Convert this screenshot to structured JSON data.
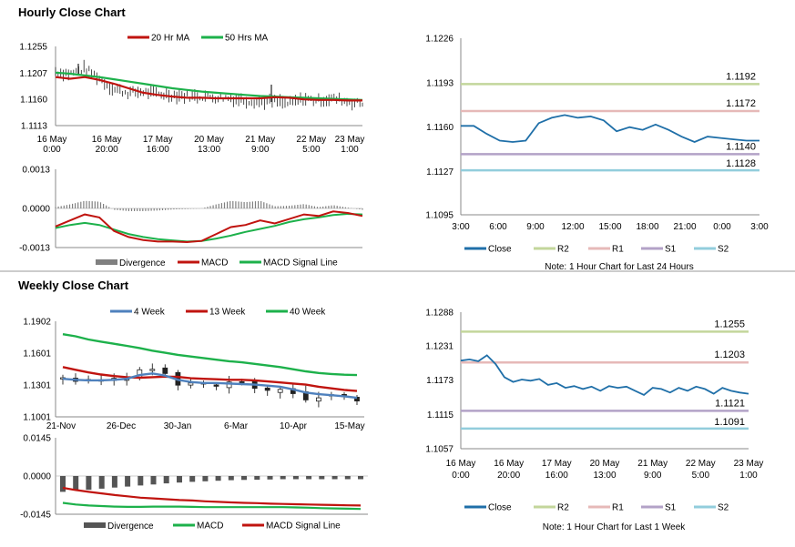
{
  "sections": {
    "hourly_title": "Hourly Close Chart",
    "weekly_title": "Weekly Close Chart"
  },
  "colors": {
    "ma_short": "#c0140f",
    "ma_long": "#1db14b",
    "week4": "#4f81bd",
    "divergence": "#808080",
    "close": "#1f6fa8",
    "r2": "#c3d69b",
    "r1": "#e6b9b8",
    "s1": "#b3a2c7",
    "s2": "#92cddc"
  },
  "chart_data": [
    {
      "id": "hourly_price",
      "type": "line",
      "legend": [
        "20 Hr MA",
        "50 Hrs MA"
      ],
      "yticks": [
        "1.1255",
        "1.1207",
        "1.1160",
        "1.1113"
      ],
      "ylim": [
        1.1113,
        1.1255
      ],
      "xticks": [
        [
          "16 May",
          "0:00"
        ],
        [
          "16 May",
          "20:00"
        ],
        [
          "17 May",
          "16:00"
        ],
        [
          "20 May",
          "13:00"
        ],
        [
          "21 May",
          "9:00"
        ],
        [
          "22 May",
          "5:00"
        ],
        [
          "23 May",
          "1:00"
        ]
      ],
      "n": 120,
      "series": [
        {
          "name": "20 Hr MA",
          "values": [
            1.12,
            1.1197,
            1.12,
            1.1195,
            1.1188,
            1.118,
            1.1172,
            1.1168,
            1.1165,
            1.1163,
            1.1163,
            1.1162,
            1.1162,
            1.1162,
            1.1162,
            1.1164,
            1.1163,
            1.116,
            1.1159,
            1.1159,
            1.1158,
            1.1158
          ]
        },
        {
          "name": "50 Hrs MA",
          "values": [
            1.1208,
            1.1206,
            1.1203,
            1.12,
            1.1196,
            1.1192,
            1.1188,
            1.1184,
            1.118,
            1.1177,
            1.1174,
            1.1172,
            1.117,
            1.1168,
            1.1166,
            1.1165,
            1.1164,
            1.1163,
            1.1162,
            1.1161,
            1.116,
            1.1159
          ]
        },
        {
          "name": "Close",
          "values": [
            1.121,
            1.1206,
            1.1215,
            1.1198,
            1.1178,
            1.1172,
            1.1174,
            1.117,
            1.1168,
            1.1166,
            1.1166,
            1.1164,
            1.1162,
            1.1159,
            1.1156,
            1.1157,
            1.1152,
            1.1161,
            1.1158,
            1.1162,
            1.1156,
            1.1152
          ]
        }
      ]
    },
    {
      "id": "hourly_macd",
      "type": "line",
      "legend": [
        "Divergence",
        "MACD",
        "MACD Signal Line"
      ],
      "yticks": [
        "0.0013",
        "0.0000",
        "-0.0013"
      ],
      "ylim": [
        -0.0013,
        0.0013
      ],
      "series": [
        {
          "name": "MACD",
          "values": [
            -0.0006,
            -0.0004,
            -0.0002,
            -0.0003,
            -0.00075,
            -0.00095,
            -0.00105,
            -0.0011,
            -0.0011,
            -0.00112,
            -0.00108,
            -0.00085,
            -0.00062,
            -0.00055,
            -0.0004,
            -0.0005,
            -0.00035,
            -0.0002,
            -0.00025,
            -0.0001,
            -0.00015,
            -0.00025
          ]
        },
        {
          "name": "MACD Signal Line",
          "values": [
            -0.00065,
            -0.00055,
            -0.00048,
            -0.00055,
            -0.0007,
            -0.00085,
            -0.00095,
            -0.00102,
            -0.00106,
            -0.0011,
            -0.00108,
            -0.001,
            -0.0009,
            -0.00078,
            -0.00068,
            -0.00058,
            -0.00045,
            -0.00036,
            -0.0003,
            -0.00022,
            -0.00018,
            -0.0002
          ]
        }
      ]
    },
    {
      "id": "hourly_close",
      "type": "line",
      "legend": [
        "Close",
        "R2",
        "R1",
        "S1",
        "S2"
      ],
      "note": "Note: 1 Hour Chart for Last 24 Hours",
      "yticks": [
        "1.1226",
        "1.1193",
        "1.1160",
        "1.1127",
        "1.1095"
      ],
      "ylim": [
        1.1095,
        1.1226
      ],
      "xticks": [
        "3:00",
        "6:00",
        "9:00",
        "12:00",
        "15:00",
        "18:00",
        "21:00",
        "0:00",
        "3:00"
      ],
      "levels": {
        "R2": "1.1192",
        "R1": "1.1172",
        "S1": "1.1140",
        "S2": "1.1128"
      },
      "level_values": {
        "R2": 1.1192,
        "R1": 1.1172,
        "S1": 1.114,
        "S2": 1.1128
      },
      "values": [
        1.1161,
        1.1161,
        1.1155,
        1.115,
        1.1149,
        1.115,
        1.1163,
        1.1167,
        1.1169,
        1.1167,
        1.1168,
        1.1165,
        1.1157,
        1.116,
        1.1158,
        1.1162,
        1.1158,
        1.1153,
        1.1149,
        1.1153,
        1.1152,
        1.1151,
        1.115,
        1.115
      ]
    },
    {
      "id": "weekly_price",
      "type": "line",
      "legend": [
        "4 Week",
        "13 Week",
        "40 Week"
      ],
      "yticks": [
        "1.1902",
        "1.1601",
        "1.1301",
        "1.1001"
      ],
      "ylim": [
        1.1001,
        1.1902
      ],
      "xticks": [
        "21-Nov",
        "26-Dec",
        "30-Jan",
        "6-Mar",
        "10-Apr",
        "15-May"
      ],
      "series": [
        {
          "name": "4 Week",
          "values": [
            1.136,
            1.135,
            1.1345,
            1.1345,
            1.135,
            1.136,
            1.1395,
            1.141,
            1.139,
            1.135,
            1.133,
            1.132,
            1.132,
            1.1315,
            1.131,
            1.1305,
            1.1295,
            1.1285,
            1.126,
            1.123,
            1.1215,
            1.1205,
            1.1195,
            1.118
          ]
        },
        {
          "name": "13 Week",
          "values": [
            1.147,
            1.1445,
            1.142,
            1.14,
            1.1385,
            1.1375,
            1.137,
            1.1375,
            1.138,
            1.1378,
            1.1365,
            1.136,
            1.1355,
            1.135,
            1.135,
            1.1345,
            1.1335,
            1.1325,
            1.1315,
            1.1305,
            1.1285,
            1.127,
            1.1255,
            1.1245
          ]
        },
        {
          "name": "40 Week",
          "values": [
            1.178,
            1.176,
            1.173,
            1.171,
            1.169,
            1.167,
            1.165,
            1.1625,
            1.1605,
            1.1585,
            1.157,
            1.1555,
            1.154,
            1.1525,
            1.1515,
            1.15,
            1.1485,
            1.147,
            1.145,
            1.143,
            1.1415,
            1.1405,
            1.1398,
            1.1395
          ]
        },
        {
          "name": "Close",
          "values": [
            1.137,
            1.1335,
            1.135,
            1.135,
            1.1365,
            1.136,
            1.1445,
            1.145,
            1.141,
            1.13,
            1.132,
            1.131,
            1.129,
            1.133,
            1.1325,
            1.127,
            1.125,
            1.126,
            1.122,
            1.116,
            1.118,
            1.121,
            1.119,
            1.115
          ]
        }
      ]
    },
    {
      "id": "weekly_macd",
      "type": "bar",
      "legend": [
        "Divergence",
        "MACD",
        "MACD Signal Line"
      ],
      "yticks": [
        "0.0145",
        "0.0000",
        "-0.0145"
      ],
      "ylim": [
        -0.0145,
        0.0145
      ],
      "divergence": [
        -0.006,
        -0.0055,
        -0.0052,
        -0.0048,
        -0.0044,
        -0.004,
        -0.0036,
        -0.0032,
        -0.0028,
        -0.0025,
        -0.0022,
        -0.002,
        -0.0018,
        -0.0016,
        -0.0015,
        -0.0014,
        -0.0013,
        -0.0012,
        -0.0012,
        -0.0012,
        -0.0012,
        -0.0012,
        -0.0012,
        -0.0012
      ],
      "series": [
        {
          "name": "MACD",
          "values": [
            -0.0102,
            -0.0108,
            -0.0112,
            -0.0114,
            -0.0116,
            -0.0117,
            -0.0117,
            -0.0116,
            -0.0116,
            -0.0116,
            -0.0117,
            -0.0118,
            -0.0118,
            -0.0118,
            -0.0118,
            -0.0118,
            -0.0118,
            -0.0118,
            -0.0119,
            -0.012,
            -0.0122,
            -0.0123,
            -0.0124,
            -0.0125
          ]
        },
        {
          "name": "MACD Signal Line",
          "values": [
            -0.0045,
            -0.0053,
            -0.006,
            -0.0066,
            -0.0072,
            -0.0077,
            -0.0082,
            -0.0085,
            -0.0088,
            -0.0091,
            -0.0093,
            -0.0096,
            -0.0098,
            -0.01,
            -0.0102,
            -0.0103,
            -0.0105,
            -0.0106,
            -0.0107,
            -0.0108,
            -0.0109,
            -0.011,
            -0.0111,
            -0.0112
          ]
        }
      ]
    },
    {
      "id": "weekly_close",
      "type": "line",
      "legend": [
        "Close",
        "R2",
        "R1",
        "S1",
        "S2"
      ],
      "note": "Note: 1 Hour Chart for Last 1 Week",
      "yticks": [
        "1.1288",
        "1.1231",
        "1.1173",
        "1.1115",
        "1.1057"
      ],
      "ylim": [
        1.1057,
        1.1288
      ],
      "xticks": [
        [
          "16 May",
          "0:00"
        ],
        [
          "16 May",
          "20:00"
        ],
        [
          "17 May",
          "16:00"
        ],
        [
          "20 May",
          "13:00"
        ],
        [
          "21 May",
          "9:00"
        ],
        [
          "22 May",
          "5:00"
        ],
        [
          "23 May",
          "1:00"
        ]
      ],
      "levels": {
        "R2": "1.1255",
        "R1": "1.1203",
        "S1": "1.1121",
        "S2": "1.1091"
      },
      "level_values": {
        "R2": 1.1255,
        "R1": 1.1203,
        "S1": 1.1121,
        "S2": 1.1091
      },
      "values": [
        1.1206,
        1.1208,
        1.1205,
        1.1215,
        1.12,
        1.1178,
        1.117,
        1.1174,
        1.1172,
        1.1175,
        1.1165,
        1.1168,
        1.116,
        1.1163,
        1.1158,
        1.1162,
        1.1155,
        1.1163,
        1.116,
        1.1162,
        1.1155,
        1.1148,
        1.116,
        1.1158,
        1.1152,
        1.116,
        1.1155,
        1.1162,
        1.1158,
        1.115,
        1.116,
        1.1155,
        1.1152,
        1.115
      ]
    }
  ]
}
